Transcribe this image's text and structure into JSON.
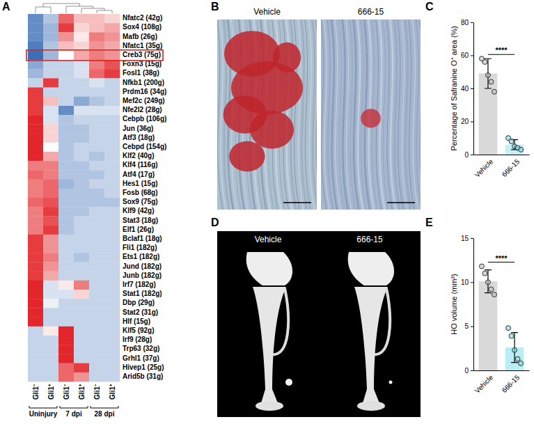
{
  "chart_data": [
    {
      "type": "heatmap",
      "panel_label": "A",
      "rows": [
        "Nfatc2 (42g)",
        "Sox4 (108g)",
        "Mafb (26g)",
        "Nfatc1 (35g)",
        "Creb3 (75g)",
        "Foxn3 (15g)",
        "Fosl1 (38g)",
        "Nfkb1 (200g)",
        "Prdm16 (34g)",
        "Mef2c (249g)",
        "Nfe2l2 (28g)",
        "Cebpb (106g)",
        "Jun (36g)",
        "Atf3 (18g)",
        "Cebpd (154g)",
        "Klf2 (40g)",
        "Klf4 (116g)",
        "Atf4 (17g)",
        "Hes1 (15g)",
        "Fosb (68g)",
        "Sox9 (75g)",
        "Klf9 (42g)",
        "Stat3 (18g)",
        "Elf1 (26g)",
        "Bclaf1 (18g)",
        "Fli1 (182g)",
        "Ets1 (182g)",
        "Jund (182g)",
        "Junb (182g)",
        "Irf7 (182g)",
        "Stat1 (182g)",
        "Dbp (29g)",
        "Stat2 (31g)",
        "Hlf (15g)",
        "Klf5 (92g)",
        "Irf9 (28g)",
        "Trp63 (32g)",
        "Grhl1 (37g)",
        "Hivep1 (25g)",
        "Arid5b (31g)"
      ],
      "columns": [
        "Gli1⁻",
        "Gli1⁺",
        "Gli1⁻",
        "Gli1⁺",
        "Gli1⁻",
        "Gli1⁺"
      ],
      "column_groups": [
        {
          "label": "Uninjury",
          "columns": [
            0,
            1
          ]
        },
        {
          "label": "7 dpi",
          "columns": [
            2,
            3
          ]
        },
        {
          "label": "28 dpi",
          "columns": [
            4,
            5
          ]
        }
      ],
      "cells": [
        [
          -0.8,
          -0.4,
          0.7,
          0.3,
          0.3,
          0.2
        ],
        [
          -0.8,
          -0.5,
          0.9,
          0.2,
          0.3,
          0.4
        ],
        [
          -0.8,
          -0.5,
          0.5,
          0.1,
          0.6,
          0.5
        ],
        [
          -0.9,
          -0.4,
          0.3,
          0.2,
          0.5,
          0.4
        ],
        [
          -1,
          -0.5,
          0,
          0.4,
          0.6,
          0.5
        ],
        [
          -0.6,
          -0.3,
          -0.3,
          -0.2,
          0.6,
          0.8
        ],
        [
          -0.5,
          -0.3,
          -0.3,
          -0.2,
          0.7,
          0.9
        ],
        [
          -0.3,
          0.9,
          -0.3,
          -0.3,
          -0.2,
          -0.3
        ],
        [
          0.9,
          -0.3,
          -0.3,
          -0.3,
          -0.3,
          -0.3
        ],
        [
          0.9,
          0.3,
          -0.3,
          -0.6,
          -0.4,
          -0.3
        ],
        [
          0.9,
          -0.2,
          -0.8,
          -0.2,
          -0.2,
          -0.2
        ],
        [
          1,
          -0.2,
          -0.4,
          -0.3,
          -0.3,
          -0.3
        ],
        [
          1,
          0.2,
          -0.4,
          -0.4,
          -0.3,
          -0.3
        ],
        [
          1,
          0.2,
          -0.4,
          -0.4,
          -0.3,
          -0.3
        ],
        [
          1,
          0,
          -0.4,
          -0.3,
          -0.3,
          -0.3
        ],
        [
          1,
          0.4,
          -0.4,
          -0.3,
          -0.4,
          -0.3
        ],
        [
          0.6,
          0.6,
          -0.4,
          -0.4,
          -0.3,
          -0.3
        ],
        [
          0.7,
          0.6,
          -0.4,
          -0.4,
          -0.4,
          -0.3
        ],
        [
          0.6,
          0.7,
          -0.5,
          -0.4,
          -0.3,
          -0.3
        ],
        [
          0.6,
          0.7,
          -0.4,
          -0.4,
          -0.4,
          -0.3
        ],
        [
          0.7,
          0.8,
          -0.4,
          -0.4,
          -0.4,
          -0.4
        ],
        [
          0.6,
          0.9,
          -0.4,
          -0.4,
          -0.3,
          -0.3
        ],
        [
          0.6,
          0.8,
          -0.4,
          -0.3,
          -0.3,
          -0.3
        ],
        [
          0.6,
          0.9,
          -0.4,
          -0.3,
          -0.3,
          -0.3
        ],
        [
          0.9,
          0.5,
          -0.3,
          -0.3,
          -0.3,
          -0.3
        ],
        [
          0.9,
          0.5,
          -0.3,
          -0.3,
          -0.3,
          -0.3
        ],
        [
          0.9,
          0.6,
          -0.3,
          -0.4,
          -0.3,
          -0.3
        ],
        [
          0.9,
          0.5,
          -0.3,
          -0.3,
          -0.3,
          -0.3
        ],
        [
          0.9,
          0.4,
          -0.3,
          -0.3,
          -0.3,
          -0.3
        ],
        [
          1,
          -0.2,
          0.1,
          0.6,
          -0.3,
          -0.3
        ],
        [
          1,
          -0.2,
          -0.2,
          0.2,
          -0.3,
          -0.3
        ],
        [
          1,
          -0.1,
          -0.3,
          -0.3,
          -0.3,
          -0.3
        ],
        [
          1,
          -0.3,
          -0.3,
          -0.3,
          -0.3,
          -0.3
        ],
        [
          1,
          -0.3,
          -0.3,
          -0.3,
          -0.3,
          -0.3
        ],
        [
          -0.3,
          0.1,
          1,
          -0.3,
          -0.3,
          -0.3
        ],
        [
          -0.3,
          -0.3,
          1,
          -0.3,
          -0.3,
          -0.3
        ],
        [
          -0.3,
          -0.3,
          1,
          -0.3,
          -0.3,
          -0.3
        ],
        [
          -0.3,
          -0.3,
          1,
          -0.3,
          -0.3,
          -0.3
        ],
        [
          -0.3,
          -0.3,
          0.7,
          0.9,
          -0.3,
          -0.3
        ],
        [
          -0.3,
          -0.3,
          0.7,
          0.5,
          -0.3,
          -0.3
        ]
      ],
      "zlim": [
        -1,
        1
      ],
      "highlighted_rows": [
        4
      ]
    },
    {
      "type": "histology",
      "panel_label": "B",
      "titles": [
        "Vehicle",
        "666-15"
      ]
    },
    {
      "type": "bar",
      "panel_label": "C",
      "categories": [
        "Vehicle",
        "666-15"
      ],
      "values": [
        49,
        6
      ],
      "errors": [
        9,
        3
      ],
      "points": [
        [
          58,
          56,
          48,
          44,
          38
        ],
        [
          10,
          8,
          5,
          4,
          3
        ]
      ],
      "colors": [
        "#d9d9d9",
        "#c4f0f7"
      ],
      "ylabel": "Percentage of Safranine O⁺ area (%)",
      "ylim": [
        0,
        80
      ],
      "yticks": [
        0,
        20,
        40,
        60,
        80
      ],
      "annotation": "****"
    },
    {
      "type": "render",
      "panel_label": "D",
      "titles": [
        "Vehicle",
        "666-15"
      ]
    },
    {
      "type": "bar",
      "panel_label": "E",
      "categories": [
        "Vehicle",
        "666-15"
      ],
      "values": [
        10.1,
        2.6
      ],
      "errors": [
        1.3,
        1.7
      ],
      "points": [
        [
          11.8,
          11,
          10,
          9.2,
          8.6
        ],
        [
          4.8,
          3.9,
          2.3,
          1.3,
          0.8
        ]
      ],
      "colors": [
        "#d9d9d9",
        "#b8eef6"
      ],
      "ylabel": "HO volume (mm³)",
      "ylim": [
        0,
        15
      ],
      "yticks": [
        0,
        5,
        10,
        15
      ],
      "annotation": "****"
    }
  ]
}
